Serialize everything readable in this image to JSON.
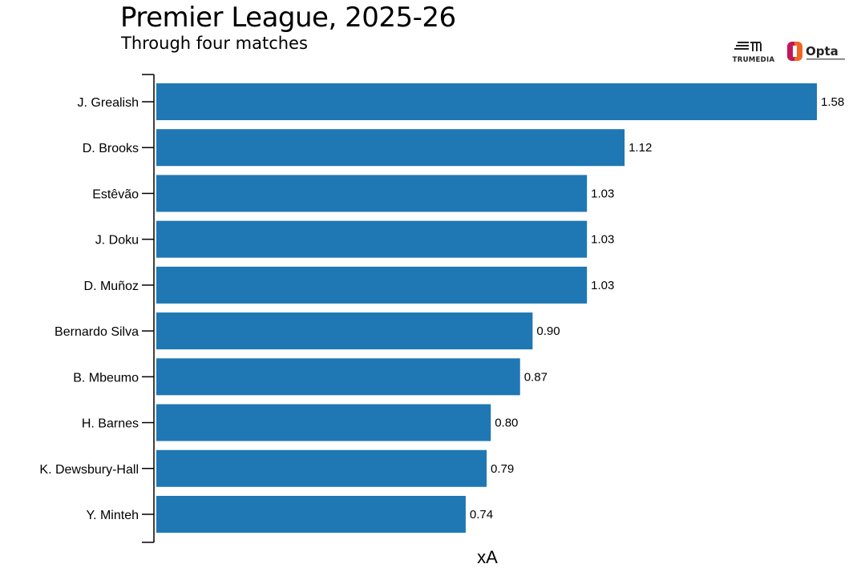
{
  "title": "Premier League, 2025-26",
  "subtitle": "Through four matches",
  "logos": [
    {
      "name": "trumedia-logo",
      "text": "TRUMEDIA"
    },
    {
      "name": "opta-logo",
      "text": "Opta"
    }
  ],
  "colors": {
    "bar": "#1f77b4",
    "axis": "#000000",
    "background": "#ffffff",
    "opta_orange": "#f26522",
    "opta_magenta": "#c2185b"
  },
  "chart_data": {
    "type": "bar",
    "orientation": "horizontal",
    "categories": [
      "J. Grealish",
      "D. Brooks",
      "Estêvão",
      "J. Doku",
      "D. Muñoz",
      "Bernardo Silva",
      "B. Mbeumo",
      "H. Barnes",
      "K. Dewsbury-Hall",
      "Y. Minteh"
    ],
    "values": [
      1.58,
      1.12,
      1.03,
      1.03,
      1.03,
      0.9,
      0.87,
      0.8,
      0.79,
      0.74
    ],
    "data_labels": [
      "1.58",
      "1.12",
      "1.03",
      "1.03",
      "1.03",
      "0.90",
      "0.87",
      "0.80",
      "0.79",
      "0.74"
    ],
    "xlabel": "xA",
    "ylabel": "",
    "xlim": [
      0,
      1.58
    ],
    "grid": false,
    "legend": "none"
  }
}
